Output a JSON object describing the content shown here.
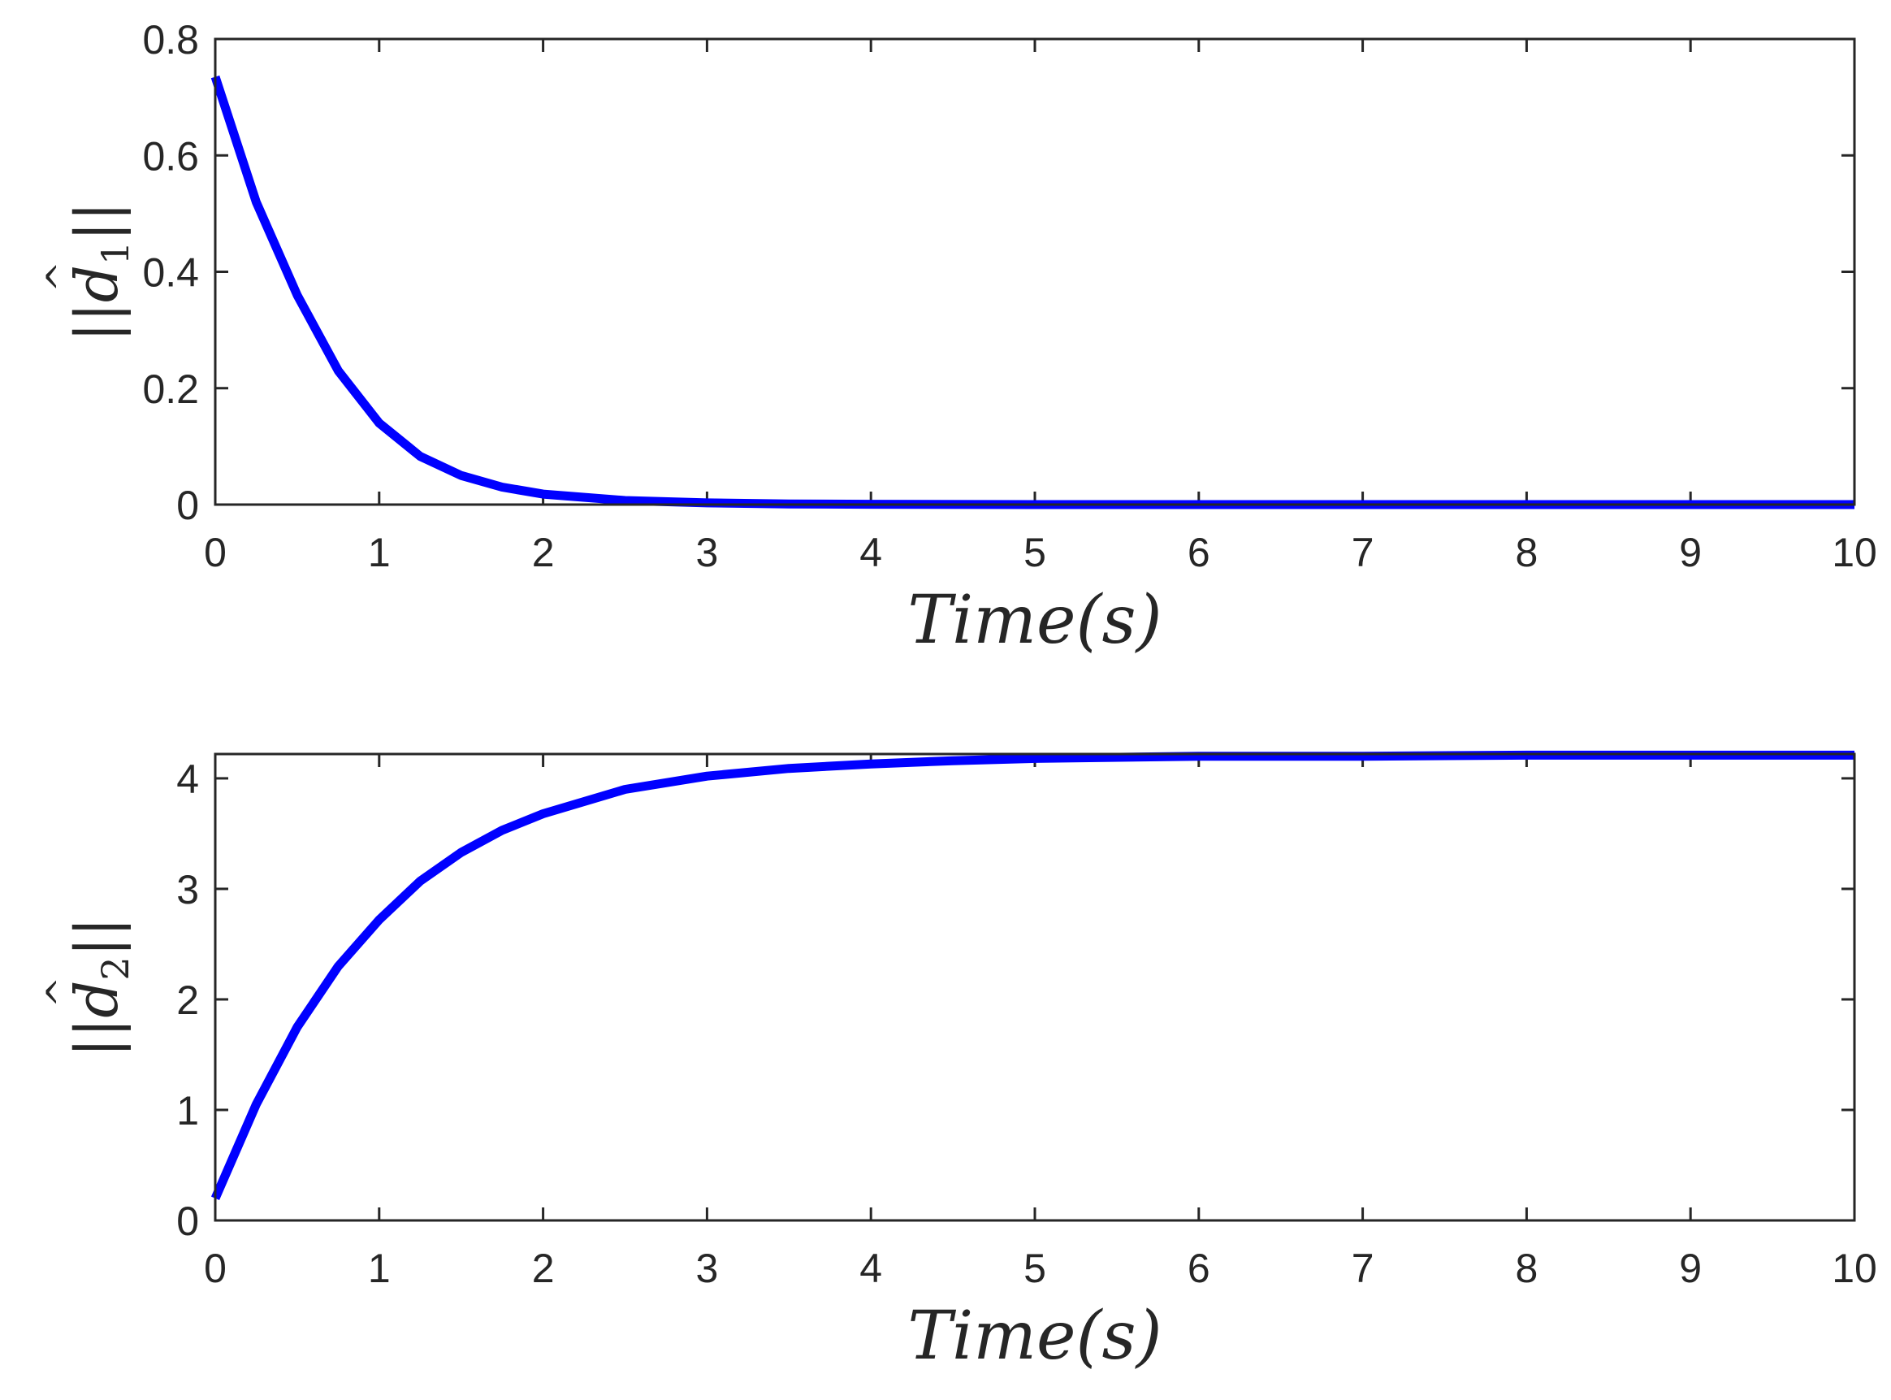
{
  "chart_data": [
    {
      "type": "line",
      "ylabel": {
        "open": "||",
        "symbol": "d",
        "hat": "^",
        "subscript": "1",
        "close": "||"
      },
      "xlabel": "Time(s)",
      "xlim": [
        0,
        10
      ],
      "ylim": [
        0,
        0.8
      ],
      "xticks": [
        0,
        1,
        2,
        3,
        4,
        5,
        6,
        7,
        8,
        9,
        10
      ],
      "xtick_labels": [
        "0",
        "1",
        "2",
        "3",
        "4",
        "5",
        "6",
        "7",
        "8",
        "9",
        "10"
      ],
      "yticks": [
        0,
        0.2,
        0.4,
        0.6,
        0.8
      ],
      "ytick_labels": [
        "0",
        "0.2",
        "0.4",
        "0.6",
        "0.8"
      ],
      "grid": false,
      "series": [
        {
          "color": "#0000ff",
          "x": [
            0,
            0.25,
            0.5,
            0.75,
            1,
            1.25,
            1.5,
            1.75,
            2,
            2.5,
            3,
            3.5,
            4,
            5,
            6,
            7,
            8,
            9,
            10
          ],
          "y": [
            0.735,
            0.52,
            0.36,
            0.23,
            0.14,
            0.083,
            0.05,
            0.03,
            0.018,
            0.007,
            0.003,
            0.001,
            0.0005,
            0,
            0,
            0,
            0,
            0,
            0
          ]
        }
      ]
    },
    {
      "type": "line",
      "ylabel": {
        "open": "||",
        "symbol": "d",
        "hat": "^",
        "subscript": "2",
        "close": "||"
      },
      "xlabel": "Time(s)",
      "xlim": [
        0,
        10
      ],
      "ylim": [
        0,
        4.22
      ],
      "xticks": [
        0,
        1,
        2,
        3,
        4,
        5,
        6,
        7,
        8,
        9,
        10
      ],
      "xtick_labels": [
        "0",
        "1",
        "2",
        "3",
        "4",
        "5",
        "6",
        "7",
        "8",
        "9",
        "10"
      ],
      "yticks": [
        0,
        1,
        2,
        3,
        4
      ],
      "ytick_labels": [
        "0",
        "1",
        "2",
        "3",
        "4"
      ],
      "grid": false,
      "series": [
        {
          "color": "#0000ff",
          "x": [
            0,
            0.25,
            0.5,
            0.75,
            1,
            1.25,
            1.5,
            1.75,
            2,
            2.5,
            3,
            3.5,
            4,
            4.5,
            5,
            6,
            7,
            8,
            9,
            10
          ],
          "y": [
            0.2,
            1.05,
            1.75,
            2.3,
            2.72,
            3.07,
            3.33,
            3.53,
            3.68,
            3.9,
            4.02,
            4.09,
            4.13,
            4.16,
            4.18,
            4.2,
            4.2,
            4.21,
            4.21,
            4.21
          ]
        }
      ]
    }
  ]
}
